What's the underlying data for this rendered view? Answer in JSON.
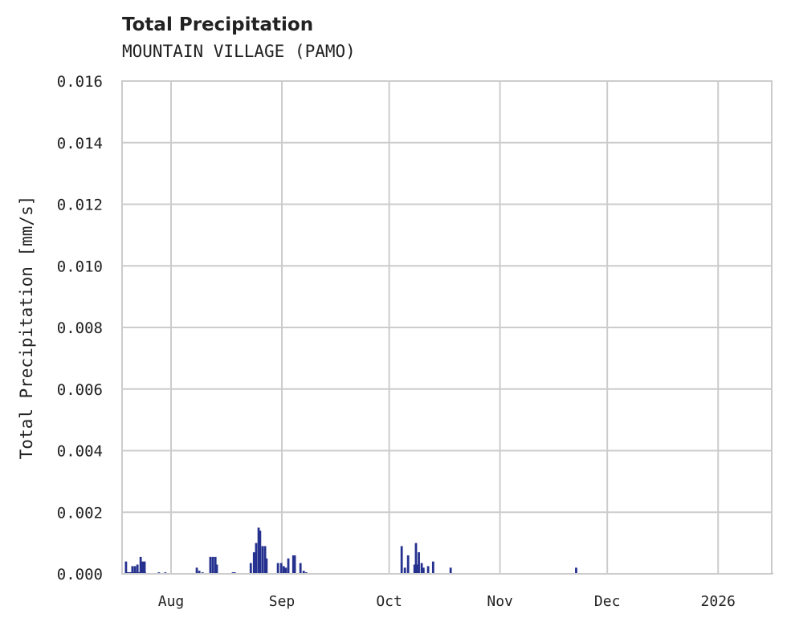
{
  "chart_data": {
    "type": "area",
    "title": "Total Precipitation",
    "subtitle": "MOUNTAIN VILLAGE (PAMO)",
    "xlabel": "",
    "ylabel": "Total Precipitation [mm/s]",
    "x_units": "days since 2025-08-01",
    "xlim": [
      -13.7,
      168
    ],
    "ylim": [
      0,
      0.016
    ],
    "yticks": [
      "0.000",
      "0.002",
      "0.004",
      "0.006",
      "0.008",
      "0.010",
      "0.012",
      "0.014",
      "0.016"
    ],
    "ytick_values": [
      0,
      0.002,
      0.004,
      0.006,
      0.008,
      0.01,
      0.012,
      0.014,
      0.016
    ],
    "xticks": [
      "Aug",
      "Sep",
      "Oct",
      "Nov",
      "Dec",
      "2026"
    ],
    "xtick_values": [
      0,
      31,
      61,
      92,
      122,
      153
    ],
    "grid": true,
    "color": "#25318f",
    "series": [
      {
        "name": "Total Precipitation",
        "x": [
          -12.6,
          -10.8,
          -10.1,
          -9.4,
          -8.5,
          -7.9,
          -7.4,
          -3.4,
          -1.6,
          7.2,
          7.9,
          8.8,
          11.0,
          11.7,
          12.4,
          12.8,
          17.3,
          17.8,
          22.3,
          23.2,
          23.8,
          24.5,
          24.9,
          25.6,
          26.3,
          26.7,
          29.9,
          30.8,
          31.5,
          32.1,
          32.8,
          34.2,
          34.6,
          36.2,
          37.1,
          37.8,
          65.4,
          66.3,
          64.5,
          68.5,
          69.3,
          68.1,
          68.8,
          70.1,
          70.6,
          71.9,
          73.3,
          78.2,
          113.3,
          168.0
        ],
        "y": [
          0.0004,
          0.00025,
          0.00025,
          0.0003,
          0.00055,
          0.0004,
          0.0004,
          5e-05,
          5e-05,
          0.0002,
          0.0001,
          5e-05,
          0.00055,
          0.00055,
          0.00055,
          0.0003,
          5e-05,
          5e-05,
          0.00035,
          0.0007,
          0.001,
          0.0015,
          0.0014,
          0.0009,
          0.0009,
          0.0005,
          0.00035,
          0.00035,
          0.00025,
          0.0002,
          0.0005,
          0.0006,
          0.0006,
          0.00035,
          0.0001,
          5e-05,
          0.0002,
          0.0006,
          0.0009,
          0.001,
          0.0007,
          0.0003,
          0.0003,
          0.00035,
          0.0002,
          0.00025,
          0.0004,
          0.0002,
          0.0002,
          3e-05
        ]
      }
    ]
  }
}
